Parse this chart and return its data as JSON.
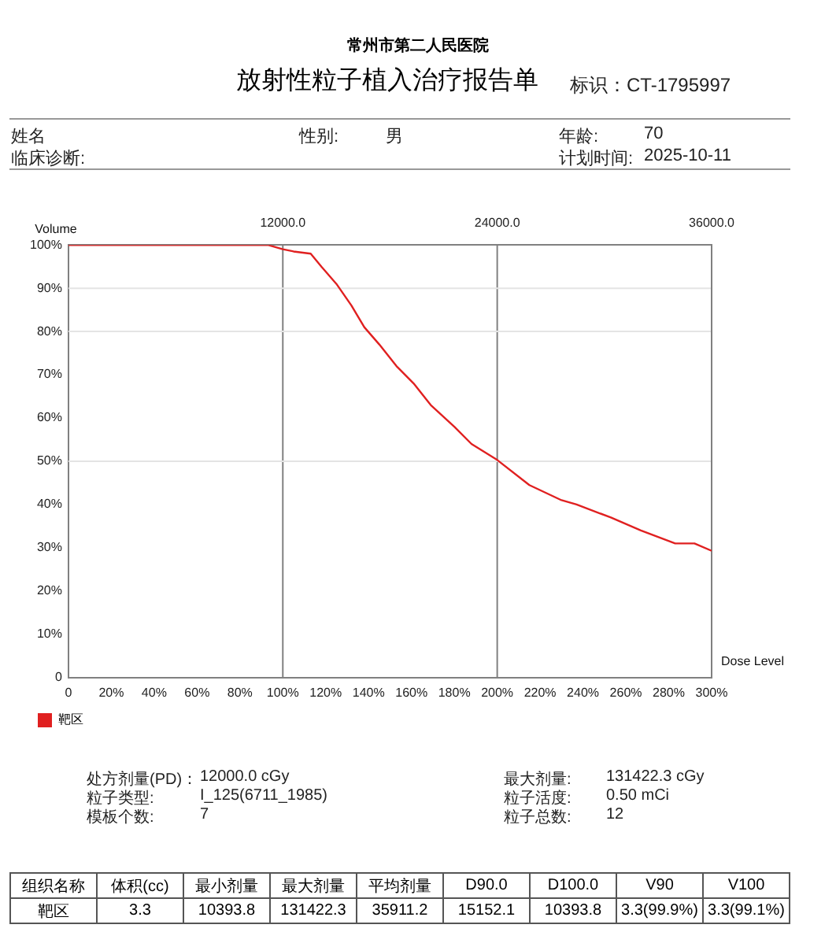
{
  "chart_data": {
    "type": "line",
    "title": "放射性粒子植入治疗报告单",
    "subtitle": "常州市第二人民医院",
    "xlabel": "Dose Level",
    "ylabel": "Volume",
    "x": [
      0,
      93,
      100,
      105,
      113,
      118,
      125,
      132,
      138,
      145,
      153,
      161,
      169,
      180,
      188,
      200,
      215,
      230,
      237,
      253,
      267,
      283,
      292,
      300
    ],
    "series": [
      {
        "name": "靶区",
        "color": "#e02020",
        "values": [
          100,
          100,
          99,
          98.5,
          98,
          95,
          91,
          86,
          81,
          77,
          72,
          68,
          63,
          58,
          54,
          50.3,
          44.5,
          41,
          40,
          37,
          34,
          31,
          31,
          29.3
        ]
      }
    ],
    "xlim": [
      0,
      300
    ],
    "xticks": [
      {
        "value": 0,
        "label": "0"
      },
      {
        "value": 20,
        "label": "20%"
      },
      {
        "value": 40,
        "label": "40%"
      },
      {
        "value": 60,
        "label": "60%"
      },
      {
        "value": 80,
        "label": "80%"
      },
      {
        "value": 100,
        "label": "100%"
      },
      {
        "value": 120,
        "label": "120%"
      },
      {
        "value": 140,
        "label": "140%"
      },
      {
        "value": 160,
        "label": "160%"
      },
      {
        "value": 180,
        "label": "180%"
      },
      {
        "value": 200,
        "label": "200%"
      },
      {
        "value": 220,
        "label": "220%"
      },
      {
        "value": 240,
        "label": "240%"
      },
      {
        "value": 260,
        "label": "260%"
      },
      {
        "value": 280,
        "label": "280%"
      },
      {
        "value": 300,
        "label": "300%"
      }
    ],
    "x2lim": [
      0,
      36000
    ],
    "x2ticks": [
      {
        "value": 12000,
        "label": "12000.0"
      },
      {
        "value": 24000,
        "label": "24000.0"
      },
      {
        "value": 36000,
        "label": "36000.0"
      }
    ],
    "ylim": [
      0,
      100
    ],
    "yticks": [
      {
        "value": 0,
        "label": "0"
      },
      {
        "value": 10,
        "label": "10%"
      },
      {
        "value": 20,
        "label": "20%"
      },
      {
        "value": 30,
        "label": "30%"
      },
      {
        "value": 40,
        "label": "40%"
      },
      {
        "value": 50,
        "label": "50%"
      },
      {
        "value": 60,
        "label": "60%"
      },
      {
        "value": 70,
        "label": "70%"
      },
      {
        "value": 80,
        "label": "80%"
      },
      {
        "value": 90,
        "label": "90%"
      },
      {
        "value": 100,
        "label": "100%"
      }
    ],
    "ref_lines": [
      {
        "axis": "x2",
        "value": 12000,
        "color": "#808080"
      },
      {
        "axis": "x2",
        "value": 24000,
        "color": "#808080"
      },
      {
        "axis": "y",
        "value": 90,
        "color": "#e4e4e4"
      },
      {
        "axis": "y",
        "value": 80,
        "color": "#e4e4e4"
      },
      {
        "axis": "y",
        "value": 50,
        "color": "#e4e4e4"
      }
    ],
    "legend": "bottom left",
    "marker": "none",
    "line_style": "solid",
    "annotations": [
      "标识：CT-1795997",
      "姓名",
      "性别:",
      "男",
      "年龄:",
      "70",
      "临床诊断:",
      "计划时间:",
      "2025-10-11",
      "处方剂量(PD)：",
      "12000.0 cGy",
      "最大剂量:",
      "131422.3 cGy",
      "粒子类型:",
      "I_125(6711_1985)",
      "粒子活度:",
      "0.50 mCi",
      "模板个数:",
      "7",
      "粒子总数:",
      "12",
      "组织名称",
      "体积(cc)",
      "最小剂量",
      "最大剂量",
      "平均剂量",
      "D90.0",
      "D100.0",
      "V90",
      "V100",
      "靶区",
      "3.3",
      "10393.8",
      "131422.3",
      "35911.2",
      "15152.1",
      "10393.8",
      "3.3(99.9%)",
      "3.3(99.1%)"
    ]
  }
}
